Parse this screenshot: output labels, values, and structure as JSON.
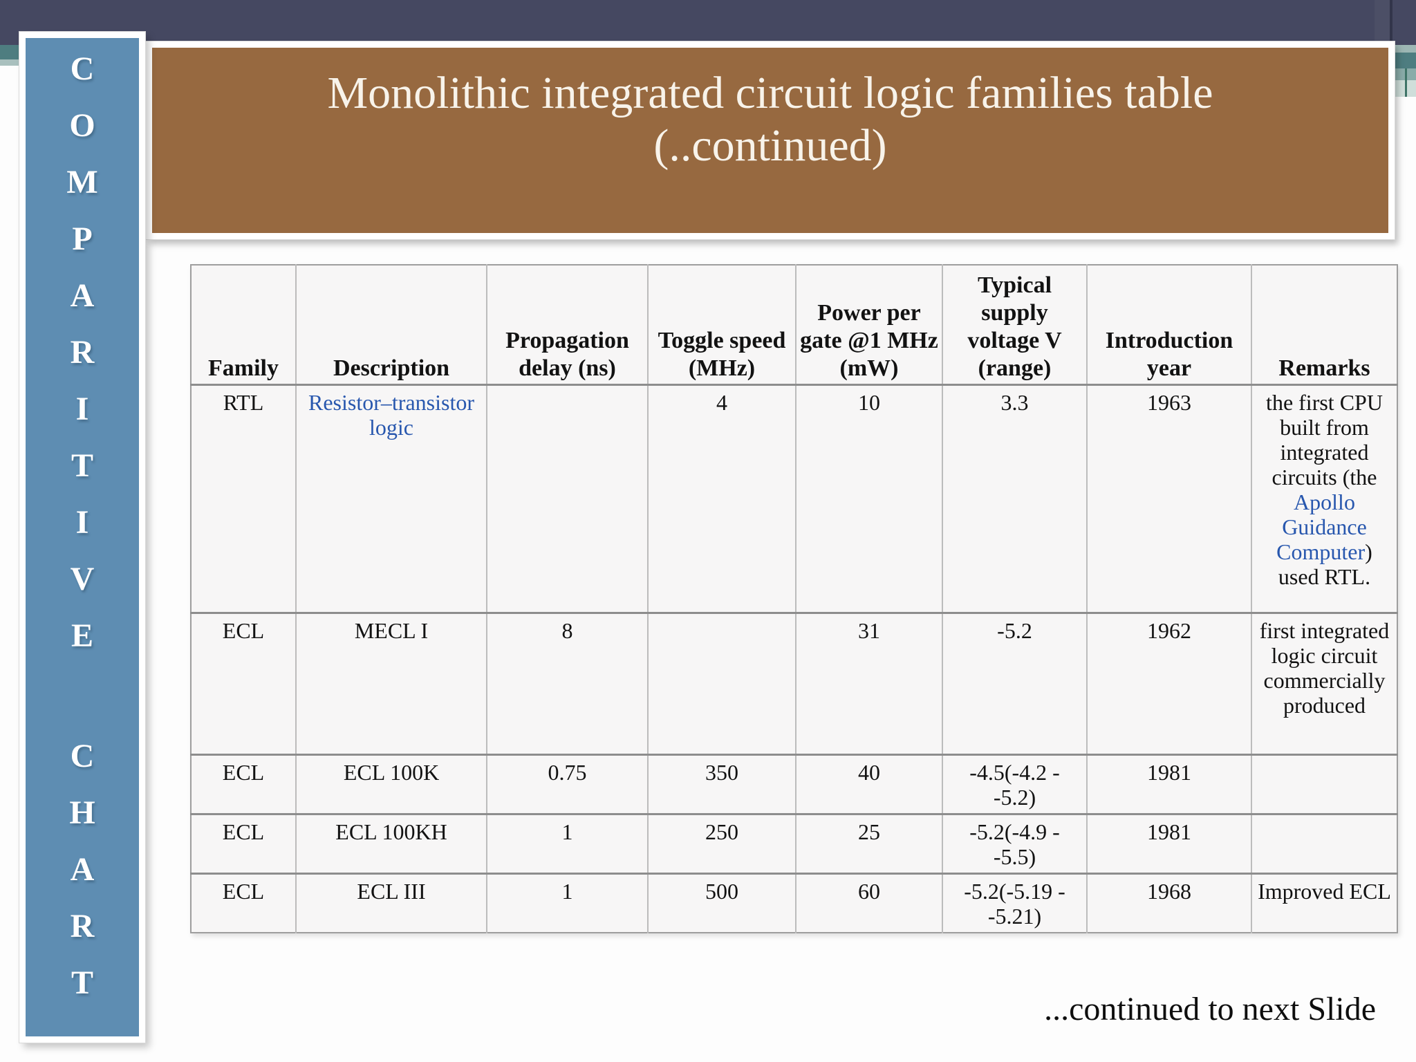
{
  "colors": {
    "navy": "#454861",
    "teal": "#4e7d80",
    "teal_light": "#a9c0be",
    "sidebar_blue": "#5e8db2",
    "banner_brown": "#976940",
    "banner_text": "#f8f3ea",
    "table_bg": "#f7f6f6",
    "link": "#2857ae"
  },
  "sidebar": {
    "word1": "COMPARITIVE",
    "word2": "CHART"
  },
  "banner": {
    "line1": "Monolithic integrated circuit logic families table",
    "line2": "(..continued)"
  },
  "table": {
    "headers": [
      "Family",
      "Description",
      "Propagation delay (ns)",
      "Toggle speed (MHz)",
      "Power per gate @1 MHz (mW)",
      "Typical supply voltage V (range)",
      "Introduction year",
      "Remarks"
    ],
    "rows": [
      {
        "cells": [
          [
            {
              "t": "RTL"
            }
          ],
          [
            {
              "t": "Resistor–transistor logic",
              "link": true
            }
          ],
          [],
          [
            {
              "t": "4"
            }
          ],
          [
            {
              "t": "10"
            }
          ],
          [
            {
              "t": "3.3"
            }
          ],
          [
            {
              "t": "1963"
            }
          ],
          [
            {
              "t": "the first CPU built from integrated circuits (the "
            },
            {
              "t": "Apollo Guidance Computer",
              "link": true
            },
            {
              "t": ") used RTL."
            }
          ]
        ]
      },
      {
        "cells": [
          [
            {
              "t": "ECL"
            }
          ],
          [
            {
              "t": "MECL I"
            }
          ],
          [
            {
              "t": "8"
            }
          ],
          [],
          [
            {
              "t": "31"
            }
          ],
          [
            {
              "t": "-5.2"
            }
          ],
          [
            {
              "t": "1962"
            }
          ],
          [
            {
              "t": "first integrated logic circuit commercially produced"
            }
          ]
        ]
      },
      {
        "cells": [
          [
            {
              "t": "ECL"
            }
          ],
          [
            {
              "t": "ECL 100K"
            }
          ],
          [
            {
              "t": "0.75"
            }
          ],
          [
            {
              "t": "350"
            }
          ],
          [
            {
              "t": "40"
            }
          ],
          [
            {
              "t": "-4.5(-4.2 - -5.2)"
            }
          ],
          [
            {
              "t": "1981"
            }
          ],
          []
        ]
      },
      {
        "cells": [
          [
            {
              "t": "ECL"
            }
          ],
          [
            {
              "t": "ECL 100KH"
            }
          ],
          [
            {
              "t": "1"
            }
          ],
          [
            {
              "t": "250"
            }
          ],
          [
            {
              "t": "25"
            }
          ],
          [
            {
              "t": "-5.2(-4.9 - -5.5)"
            }
          ],
          [
            {
              "t": "1981"
            }
          ],
          []
        ]
      },
      {
        "cells": [
          [
            {
              "t": "ECL"
            }
          ],
          [
            {
              "t": "ECL III"
            }
          ],
          [
            {
              "t": "1"
            }
          ],
          [
            {
              "t": "500"
            }
          ],
          [
            {
              "t": "60"
            }
          ],
          [
            {
              "t": "-5.2(-5.19 - -5.21)"
            }
          ],
          [
            {
              "t": "1968"
            }
          ],
          [
            {
              "t": "Improved ECL"
            }
          ]
        ]
      }
    ]
  },
  "footer": {
    "text": "...continued to next Slide"
  }
}
